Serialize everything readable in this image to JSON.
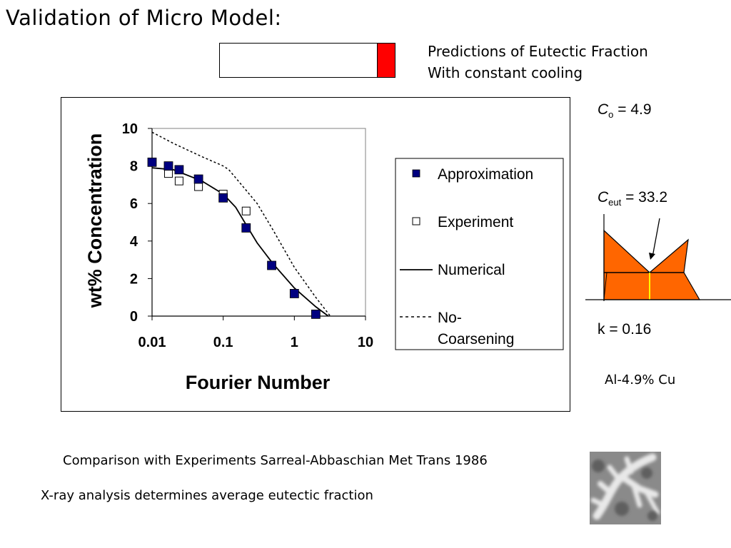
{
  "slide": {
    "title": "Validation of Micro Model:",
    "predictions_line1": "Predictions of Eutectic Fraction",
    "predictions_line2": "With constant cooling",
    "fraction_bar_fill": 0.1,
    "fraction_bar_color": "#ff0000",
    "co_symbol": "C",
    "co_sub": "o",
    "co_value": " = 4.9",
    "ceut_symbol": "C",
    "ceut_sub": "eut",
    "ceut_value": " = 33.2",
    "k_text": "k = 0.16",
    "alloy": "Al-4.9% Cu",
    "comparison": "Comparison with Experiments Sarreal-Abbaschian Met Trans 1986",
    "xray": "X-ray analysis determines average eutectic fraction",
    "phase_diagram_color": "#ff6600",
    "phase_line_color": "#ffff00"
  },
  "chart_data": {
    "type": "scatter",
    "xlabel": "Fourier Number",
    "ylabel": "wt% Concentration",
    "xscale": "log",
    "xlim": [
      0.01,
      10
    ],
    "ylim": [
      0,
      10
    ],
    "xticks": [
      "0.01",
      "0.1",
      "1",
      "10"
    ],
    "yticks": [
      "0",
      "2",
      "4",
      "6",
      "8",
      "10"
    ],
    "grid": "horizontal at 10 only",
    "legend_position": "right",
    "series": [
      {
        "name": "Approximation",
        "style": "filled-square",
        "color": "#000080",
        "x": [
          0.01,
          0.017,
          0.024,
          0.045,
          0.1,
          0.21,
          0.48,
          1.0,
          2.0
        ],
        "y": [
          8.2,
          8.0,
          7.8,
          7.3,
          6.3,
          4.7,
          2.7,
          1.2,
          0.1
        ]
      },
      {
        "name": "Experiment",
        "style": "open-square",
        "color": "#000000",
        "x": [
          0.017,
          0.024,
          0.045,
          0.1,
          0.21
        ],
        "y": [
          7.6,
          7.2,
          6.9,
          6.5,
          5.6
        ]
      },
      {
        "name": "Numerical",
        "style": "solid-line",
        "color": "#000000",
        "x": [
          0.01,
          0.02,
          0.05,
          0.1,
          0.15,
          0.2,
          0.3,
          0.5,
          1.0,
          2.0,
          3.0
        ],
        "y": [
          7.9,
          7.8,
          7.2,
          6.5,
          5.8,
          5.0,
          3.9,
          2.8,
          1.5,
          0.5,
          0
        ]
      },
      {
        "name": "No-Coarsening",
        "name_line1": "No-",
        "name_line2": "Coarsening",
        "style": "dashed-line",
        "color": "#000000",
        "x": [
          0.01,
          0.02,
          0.05,
          0.1,
          0.12,
          0.2,
          0.3,
          0.5,
          1.0,
          2.0,
          3.2
        ],
        "y": [
          9.8,
          9.2,
          8.5,
          8.0,
          7.8,
          6.8,
          6.0,
          4.6,
          2.6,
          1.0,
          0
        ]
      }
    ]
  }
}
